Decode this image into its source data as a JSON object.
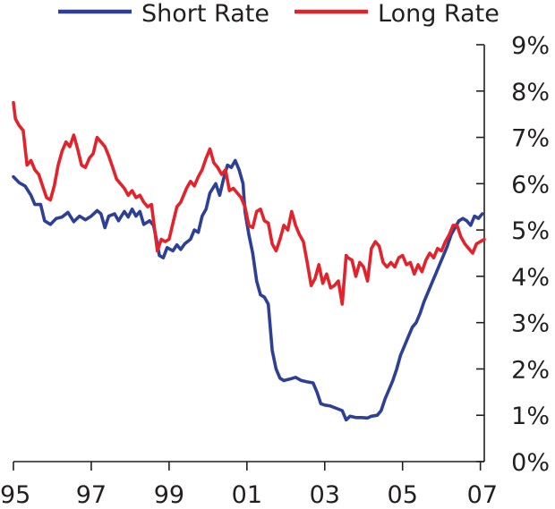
{
  "chart_data": {
    "type": "line",
    "title": "",
    "xlabel": "",
    "ylabel": "",
    "xlim": [
      1995.0,
      2007.1
    ],
    "ylim": [
      0,
      9
    ],
    "x_ticks": [
      {
        "value": 1995,
        "label": "95"
      },
      {
        "value": 1997,
        "label": "97"
      },
      {
        "value": 1999,
        "label": "99"
      },
      {
        "value": 2001,
        "label": "01"
      },
      {
        "value": 2003,
        "label": "03"
      },
      {
        "value": 2005,
        "label": "05"
      },
      {
        "value": 2007,
        "label": "07"
      }
    ],
    "y_ticks": [
      {
        "value": 0,
        "label": "0%"
      },
      {
        "value": 1,
        "label": "1%"
      },
      {
        "value": 2,
        "label": "2%"
      },
      {
        "value": 3,
        "label": "3%"
      },
      {
        "value": 4,
        "label": "4%"
      },
      {
        "value": 5,
        "label": "5%"
      },
      {
        "value": 6,
        "label": "6%"
      },
      {
        "value": 7,
        "label": "7%"
      },
      {
        "value": 8,
        "label": "8%"
      },
      {
        "value": 9,
        "label": "9%"
      }
    ],
    "y_axis_side": "right",
    "grid": false,
    "legend_position": "top",
    "series": [
      {
        "name": "Short Rate",
        "color": "#2e3f96",
        "points": [
          [
            1995.0,
            6.15
          ],
          [
            1995.15,
            6.02
          ],
          [
            1995.3,
            5.95
          ],
          [
            1995.45,
            5.75
          ],
          [
            1995.55,
            5.55
          ],
          [
            1995.7,
            5.55
          ],
          [
            1995.8,
            5.2
          ],
          [
            1995.95,
            5.12
          ],
          [
            1996.1,
            5.25
          ],
          [
            1996.25,
            5.28
          ],
          [
            1996.4,
            5.38
          ],
          [
            1996.55,
            5.18
          ],
          [
            1996.7,
            5.3
          ],
          [
            1996.85,
            5.22
          ],
          [
            1997.0,
            5.3
          ],
          [
            1997.15,
            5.42
          ],
          [
            1997.25,
            5.35
          ],
          [
            1997.35,
            5.05
          ],
          [
            1997.45,
            5.3
          ],
          [
            1997.6,
            5.35
          ],
          [
            1997.7,
            5.2
          ],
          [
            1997.85,
            5.4
          ],
          [
            1997.95,
            5.28
          ],
          [
            1998.05,
            5.45
          ],
          [
            1998.15,
            5.3
          ],
          [
            1998.25,
            5.4
          ],
          [
            1998.35,
            5.12
          ],
          [
            1998.5,
            5.2
          ],
          [
            1998.6,
            5.1
          ],
          [
            1998.7,
            4.7
          ],
          [
            1998.75,
            4.45
          ],
          [
            1998.85,
            4.4
          ],
          [
            1998.95,
            4.62
          ],
          [
            1999.1,
            4.55
          ],
          [
            1999.2,
            4.68
          ],
          [
            1999.3,
            4.58
          ],
          [
            1999.4,
            4.7
          ],
          [
            1999.55,
            4.8
          ],
          [
            1999.65,
            5.0
          ],
          [
            1999.75,
            4.95
          ],
          [
            1999.85,
            5.3
          ],
          [
            1999.95,
            5.45
          ],
          [
            2000.05,
            5.8
          ],
          [
            2000.2,
            6.0
          ],
          [
            2000.3,
            5.75
          ],
          [
            2000.4,
            6.1
          ],
          [
            2000.5,
            6.4
          ],
          [
            2000.6,
            6.35
          ],
          [
            2000.7,
            6.5
          ],
          [
            2000.8,
            6.3
          ],
          [
            2000.9,
            6.0
          ],
          [
            2000.95,
            5.4
          ],
          [
            2001.05,
            4.9
          ],
          [
            2001.15,
            4.5
          ],
          [
            2001.25,
            3.9
          ],
          [
            2001.35,
            3.6
          ],
          [
            2001.45,
            3.55
          ],
          [
            2001.55,
            3.4
          ],
          [
            2001.65,
            2.4
          ],
          [
            2001.75,
            2.0
          ],
          [
            2001.85,
            1.8
          ],
          [
            2001.95,
            1.75
          ],
          [
            2002.1,
            1.78
          ],
          [
            2002.25,
            1.82
          ],
          [
            2002.4,
            1.75
          ],
          [
            2002.55,
            1.72
          ],
          [
            2002.7,
            1.7
          ],
          [
            2002.8,
            1.5
          ],
          [
            2002.9,
            1.25
          ],
          [
            2003.0,
            1.22
          ],
          [
            2003.15,
            1.2
          ],
          [
            2003.3,
            1.15
          ],
          [
            2003.45,
            1.1
          ],
          [
            2003.55,
            0.9
          ],
          [
            2003.65,
            0.98
          ],
          [
            2003.8,
            0.95
          ],
          [
            2003.95,
            0.95
          ],
          [
            2004.1,
            0.94
          ],
          [
            2004.2,
            0.98
          ],
          [
            2004.35,
            1.0
          ],
          [
            2004.45,
            1.1
          ],
          [
            2004.55,
            1.35
          ],
          [
            2004.65,
            1.55
          ],
          [
            2004.75,
            1.75
          ],
          [
            2004.85,
            2.0
          ],
          [
            2004.95,
            2.3
          ],
          [
            2005.05,
            2.5
          ],
          [
            2005.15,
            2.7
          ],
          [
            2005.25,
            2.9
          ],
          [
            2005.35,
            3.0
          ],
          [
            2005.45,
            3.2
          ],
          [
            2005.55,
            3.45
          ],
          [
            2005.65,
            3.65
          ],
          [
            2005.75,
            3.85
          ],
          [
            2005.85,
            4.05
          ],
          [
            2005.95,
            4.25
          ],
          [
            2006.05,
            4.45
          ],
          [
            2006.15,
            4.65
          ],
          [
            2006.25,
            4.9
          ],
          [
            2006.35,
            5.05
          ],
          [
            2006.45,
            5.2
          ],
          [
            2006.55,
            5.25
          ],
          [
            2006.65,
            5.2
          ],
          [
            2006.75,
            5.1
          ],
          [
            2006.85,
            5.3
          ],
          [
            2006.95,
            5.25
          ],
          [
            2007.05,
            5.35
          ]
        ]
      },
      {
        "name": "Long Rate",
        "color": "#e2232c",
        "points": [
          [
            1995.0,
            7.75
          ],
          [
            1995.05,
            7.4
          ],
          [
            1995.15,
            7.25
          ],
          [
            1995.25,
            7.15
          ],
          [
            1995.35,
            6.4
          ],
          [
            1995.45,
            6.5
          ],
          [
            1995.55,
            6.3
          ],
          [
            1995.65,
            6.2
          ],
          [
            1995.75,
            5.95
          ],
          [
            1995.85,
            5.7
          ],
          [
            1995.95,
            5.65
          ],
          [
            1996.05,
            5.95
          ],
          [
            1996.15,
            6.4
          ],
          [
            1996.25,
            6.7
          ],
          [
            1996.35,
            6.9
          ],
          [
            1996.45,
            6.8
          ],
          [
            1996.55,
            7.05
          ],
          [
            1996.65,
            6.75
          ],
          [
            1996.75,
            6.4
          ],
          [
            1996.85,
            6.35
          ],
          [
            1996.95,
            6.55
          ],
          [
            1997.05,
            6.65
          ],
          [
            1997.15,
            7.0
          ],
          [
            1997.25,
            6.9
          ],
          [
            1997.35,
            6.8
          ],
          [
            1997.45,
            6.6
          ],
          [
            1997.55,
            6.35
          ],
          [
            1997.65,
            6.1
          ],
          [
            1997.75,
            6.0
          ],
          [
            1997.85,
            5.9
          ],
          [
            1997.95,
            5.75
          ],
          [
            1998.05,
            5.85
          ],
          [
            1998.15,
            5.7
          ],
          [
            1998.25,
            5.75
          ],
          [
            1998.35,
            5.6
          ],
          [
            1998.45,
            5.5
          ],
          [
            1998.55,
            5.55
          ],
          [
            1998.6,
            5.2
          ],
          [
            1998.7,
            4.55
          ],
          [
            1998.8,
            4.8
          ],
          [
            1998.9,
            4.75
          ],
          [
            1999.0,
            4.8
          ],
          [
            1999.1,
            5.15
          ],
          [
            1999.2,
            5.5
          ],
          [
            1999.3,
            5.6
          ],
          [
            1999.45,
            5.9
          ],
          [
            1999.55,
            6.05
          ],
          [
            1999.65,
            5.95
          ],
          [
            1999.75,
            6.15
          ],
          [
            1999.85,
            6.3
          ],
          [
            1999.95,
            6.55
          ],
          [
            2000.05,
            6.75
          ],
          [
            2000.15,
            6.45
          ],
          [
            2000.25,
            6.35
          ],
          [
            2000.35,
            6.2
          ],
          [
            2000.45,
            6.3
          ],
          [
            2000.55,
            5.85
          ],
          [
            2000.65,
            5.9
          ],
          [
            2000.75,
            5.8
          ],
          [
            2000.85,
            5.7
          ],
          [
            2000.95,
            5.5
          ],
          [
            2001.05,
            5.1
          ],
          [
            2001.15,
            5.05
          ],
          [
            2001.25,
            5.4
          ],
          [
            2001.35,
            5.45
          ],
          [
            2001.45,
            5.2
          ],
          [
            2001.55,
            5.15
          ],
          [
            2001.65,
            4.7
          ],
          [
            2001.75,
            4.55
          ],
          [
            2001.85,
            4.8
          ],
          [
            2001.95,
            5.1
          ],
          [
            2002.05,
            5.0
          ],
          [
            2002.15,
            5.4
          ],
          [
            2002.25,
            5.1
          ],
          [
            2002.35,
            4.9
          ],
          [
            2002.45,
            4.75
          ],
          [
            2002.55,
            4.3
          ],
          [
            2002.65,
            3.8
          ],
          [
            2002.75,
            3.95
          ],
          [
            2002.85,
            4.25
          ],
          [
            2002.95,
            3.85
          ],
          [
            2003.05,
            4.05
          ],
          [
            2003.15,
            3.75
          ],
          [
            2003.25,
            3.8
          ],
          [
            2003.35,
            3.9
          ],
          [
            2003.45,
            3.4
          ],
          [
            2003.55,
            4.45
          ],
          [
            2003.6,
            4.4
          ],
          [
            2003.7,
            4.35
          ],
          [
            2003.8,
            4.0
          ],
          [
            2003.9,
            4.3
          ],
          [
            2004.0,
            4.2
          ],
          [
            2004.1,
            3.9
          ],
          [
            2004.2,
            4.6
          ],
          [
            2004.3,
            4.75
          ],
          [
            2004.4,
            4.65
          ],
          [
            2004.5,
            4.3
          ],
          [
            2004.6,
            4.2
          ],
          [
            2004.7,
            4.3
          ],
          [
            2004.8,
            4.2
          ],
          [
            2004.9,
            4.4
          ],
          [
            2005.0,
            4.45
          ],
          [
            2005.1,
            4.25
          ],
          [
            2005.2,
            4.3
          ],
          [
            2005.3,
            4.05
          ],
          [
            2005.4,
            4.25
          ],
          [
            2005.5,
            4.1
          ],
          [
            2005.6,
            4.35
          ],
          [
            2005.7,
            4.5
          ],
          [
            2005.8,
            4.4
          ],
          [
            2005.9,
            4.6
          ],
          [
            2006.0,
            4.55
          ],
          [
            2006.1,
            4.75
          ],
          [
            2006.2,
            4.9
          ],
          [
            2006.3,
            5.1
          ],
          [
            2006.4,
            5.1
          ],
          [
            2006.5,
            4.85
          ],
          [
            2006.6,
            4.7
          ],
          [
            2006.7,
            4.6
          ],
          [
            2006.8,
            4.5
          ],
          [
            2006.9,
            4.7
          ],
          [
            2007.0,
            4.75
          ],
          [
            2007.1,
            4.8
          ]
        ]
      }
    ]
  }
}
